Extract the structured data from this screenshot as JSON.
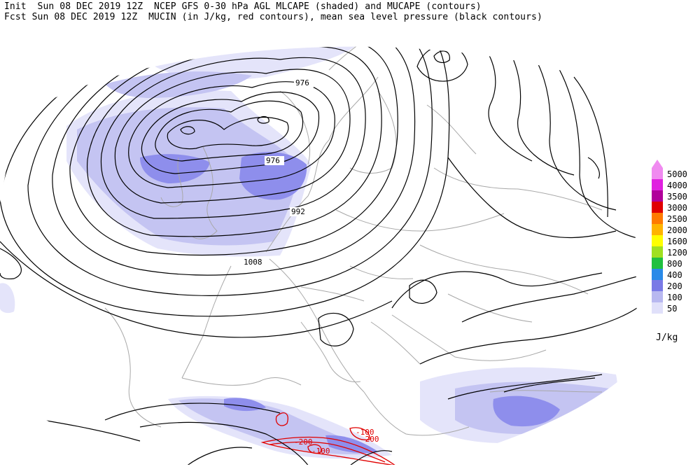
{
  "header": {
    "line1": "Init  Sun 08 DEC 2019 12Z  NCEP GFS 0-30 hPa AGL MLCAPE (shaded) and MUCAPE (contours)",
    "line2": "Fcst Sun 08 DEC 2019 12Z  MUCIN (in J/kg, red contours), mean sea level pressure (black contours)"
  },
  "map": {
    "pressure_labels": [
      "976",
      "976",
      "992",
      "1008"
    ],
    "cin_labels": [
      "-200",
      "-100",
      "-200",
      "-100"
    ]
  },
  "legend": {
    "units": "J/kg",
    "items": [
      {
        "label": "5000",
        "color": "#f08af0"
      },
      {
        "label": "4000",
        "color": "#e020e0"
      },
      {
        "label": "3500",
        "color": "#b0009a"
      },
      {
        "label": "3000",
        "color": "#e00000"
      },
      {
        "label": "2500",
        "color": "#ff7a00"
      },
      {
        "label": "2000",
        "color": "#ffb400"
      },
      {
        "label": "1600",
        "color": "#ffff00"
      },
      {
        "label": "1200",
        "color": "#a0e020"
      },
      {
        "label": "800",
        "color": "#20c040"
      },
      {
        "label": "400",
        "color": "#2a8ae8"
      },
      {
        "label": "200",
        "color": "#7a7ae6"
      },
      {
        "label": "100",
        "color": "#b8b8f0"
      },
      {
        "label": "50",
        "color": "#e0e0fa"
      }
    ]
  },
  "colors": {
    "cape_50": "#e4e4fa",
    "cape_100": "#c4c4f2",
    "cape_200": "#8e8eec",
    "cin_contour": "#e00000",
    "pressure_contour": "#000000",
    "border": "#a8a8a8"
  }
}
